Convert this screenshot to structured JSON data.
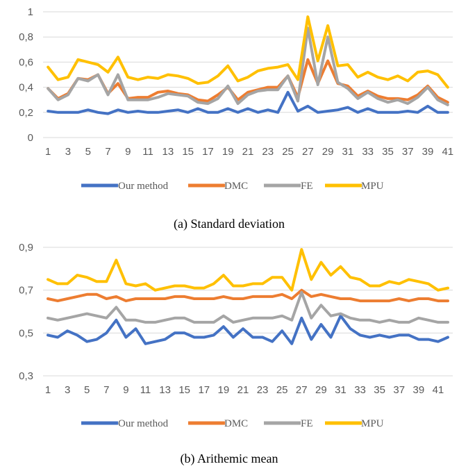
{
  "chart_data": [
    {
      "type": "line",
      "caption": "(a) Standard deviation",
      "x": [
        1,
        2,
        3,
        4,
        5,
        6,
        7,
        8,
        9,
        10,
        11,
        12,
        13,
        14,
        15,
        16,
        17,
        18,
        19,
        20,
        21,
        22,
        23,
        24,
        25,
        26,
        27,
        28,
        29,
        30,
        31,
        32,
        33,
        34,
        35,
        36,
        37,
        38,
        39,
        40,
        41
      ],
      "x_tick_labels": [
        "1",
        "3",
        "5",
        "7",
        "9",
        "11",
        "13",
        "15",
        "17",
        "19",
        "21",
        "23",
        "25",
        "27",
        "29",
        "31",
        "33",
        "35",
        "37",
        "39",
        "41"
      ],
      "y_tick_labels": [
        "0",
        "0,2",
        "0,4",
        "0,6",
        "0,8",
        "1"
      ],
      "ylim": [
        0,
        1
      ],
      "yticks": [
        0,
        0.2,
        0.4,
        0.6,
        0.8,
        1
      ],
      "grid": true,
      "legend_position": "bottom",
      "series": [
        {
          "name": "Our method",
          "color": "#4472C4",
          "values": [
            0.21,
            0.2,
            0.2,
            0.2,
            0.22,
            0.2,
            0.19,
            0.22,
            0.2,
            0.21,
            0.2,
            0.2,
            0.21,
            0.22,
            0.2,
            0.23,
            0.2,
            0.2,
            0.23,
            0.2,
            0.23,
            0.2,
            0.22,
            0.2,
            0.36,
            0.21,
            0.25,
            0.2,
            0.21,
            0.22,
            0.24,
            0.2,
            0.23,
            0.2,
            0.2,
            0.2,
            0.21,
            0.2,
            0.25,
            0.2,
            0.2
          ]
        },
        {
          "name": "DMC",
          "color": "#ED7D31",
          "values": [
            0.39,
            0.31,
            0.35,
            0.47,
            0.46,
            0.5,
            0.35,
            0.43,
            0.31,
            0.32,
            0.32,
            0.36,
            0.37,
            0.35,
            0.34,
            0.3,
            0.29,
            0.34,
            0.4,
            0.3,
            0.36,
            0.38,
            0.4,
            0.4,
            0.49,
            0.32,
            0.62,
            0.43,
            0.61,
            0.43,
            0.41,
            0.33,
            0.37,
            0.33,
            0.31,
            0.31,
            0.3,
            0.34,
            0.41,
            0.32,
            0.28
          ]
        },
        {
          "name": "FE",
          "color": "#A5A5A5",
          "values": [
            0.39,
            0.3,
            0.34,
            0.47,
            0.45,
            0.5,
            0.34,
            0.5,
            0.3,
            0.3,
            0.3,
            0.32,
            0.35,
            0.34,
            0.33,
            0.28,
            0.27,
            0.31,
            0.41,
            0.27,
            0.34,
            0.37,
            0.38,
            0.38,
            0.49,
            0.29,
            0.87,
            0.42,
            0.8,
            0.44,
            0.39,
            0.31,
            0.36,
            0.31,
            0.28,
            0.3,
            0.27,
            0.32,
            0.4,
            0.3,
            0.26
          ]
        },
        {
          "name": "MPU",
          "color": "#FFC000",
          "values": [
            0.56,
            0.46,
            0.48,
            0.62,
            0.6,
            0.58,
            0.52,
            0.64,
            0.48,
            0.46,
            0.48,
            0.47,
            0.5,
            0.49,
            0.47,
            0.43,
            0.44,
            0.49,
            0.57,
            0.45,
            0.48,
            0.53,
            0.55,
            0.56,
            0.58,
            0.46,
            0.96,
            0.61,
            0.89,
            0.57,
            0.58,
            0.48,
            0.52,
            0.48,
            0.46,
            0.49,
            0.45,
            0.52,
            0.53,
            0.5,
            0.4
          ]
        }
      ]
    },
    {
      "type": "line",
      "caption": "(b) Arithemic mean",
      "x": [
        1,
        2,
        3,
        4,
        5,
        6,
        7,
        8,
        9,
        10,
        11,
        12,
        13,
        14,
        15,
        16,
        17,
        18,
        19,
        20,
        21,
        22,
        23,
        24,
        25,
        26,
        27,
        28,
        29,
        30,
        31,
        32,
        33,
        34,
        35,
        36,
        37,
        38,
        39,
        40,
        41,
        42
      ],
      "x_tick_labels": [
        "1",
        "3",
        "5",
        "7",
        "9",
        "11",
        "13",
        "15",
        "17",
        "19",
        "21",
        "23",
        "25",
        "27",
        "29",
        "31",
        "33",
        "35",
        "37",
        "39",
        "41"
      ],
      "y_tick_labels": [
        "0,3",
        "0,5",
        "0,7",
        "0,9"
      ],
      "ylim": [
        0.3,
        0.9
      ],
      "yticks": [
        0.3,
        0.5,
        0.7,
        0.9
      ],
      "grid": true,
      "legend_position": "bottom",
      "series": [
        {
          "name": "Our method",
          "color": "#4472C4",
          "values": [
            0.49,
            0.48,
            0.51,
            0.49,
            0.46,
            0.47,
            0.5,
            0.56,
            0.48,
            0.52,
            0.45,
            0.46,
            0.47,
            0.5,
            0.5,
            0.48,
            0.48,
            0.49,
            0.53,
            0.48,
            0.52,
            0.48,
            0.48,
            0.46,
            0.51,
            0.45,
            0.57,
            0.47,
            0.54,
            0.48,
            0.58,
            0.52,
            0.49,
            0.48,
            0.49,
            0.48,
            0.49,
            0.49,
            0.47,
            0.47,
            0.46,
            0.48
          ]
        },
        {
          "name": "DMC",
          "color": "#ED7D31",
          "values": [
            0.66,
            0.65,
            0.66,
            0.67,
            0.68,
            0.68,
            0.66,
            0.67,
            0.65,
            0.66,
            0.66,
            0.66,
            0.66,
            0.67,
            0.67,
            0.66,
            0.66,
            0.66,
            0.67,
            0.66,
            0.66,
            0.67,
            0.67,
            0.67,
            0.68,
            0.66,
            0.7,
            0.67,
            0.68,
            0.67,
            0.66,
            0.66,
            0.65,
            0.65,
            0.65,
            0.65,
            0.66,
            0.65,
            0.66,
            0.66,
            0.65,
            0.65
          ]
        },
        {
          "name": "FE",
          "color": "#A5A5A5",
          "values": [
            0.57,
            0.56,
            0.57,
            0.58,
            0.59,
            0.58,
            0.57,
            0.62,
            0.56,
            0.56,
            0.55,
            0.55,
            0.56,
            0.57,
            0.57,
            0.55,
            0.55,
            0.55,
            0.58,
            0.55,
            0.56,
            0.57,
            0.57,
            0.57,
            0.58,
            0.56,
            0.69,
            0.57,
            0.63,
            0.58,
            0.59,
            0.57,
            0.56,
            0.56,
            0.55,
            0.56,
            0.55,
            0.55,
            0.57,
            0.56,
            0.55,
            0.55
          ]
        },
        {
          "name": "MPU",
          "color": "#FFC000",
          "values": [
            0.75,
            0.73,
            0.73,
            0.77,
            0.76,
            0.74,
            0.74,
            0.84,
            0.73,
            0.72,
            0.73,
            0.7,
            0.71,
            0.72,
            0.72,
            0.71,
            0.71,
            0.73,
            0.77,
            0.72,
            0.72,
            0.73,
            0.73,
            0.76,
            0.76,
            0.7,
            0.89,
            0.75,
            0.83,
            0.77,
            0.81,
            0.76,
            0.75,
            0.72,
            0.72,
            0.74,
            0.73,
            0.75,
            0.74,
            0.73,
            0.7,
            0.71
          ]
        }
      ]
    }
  ]
}
